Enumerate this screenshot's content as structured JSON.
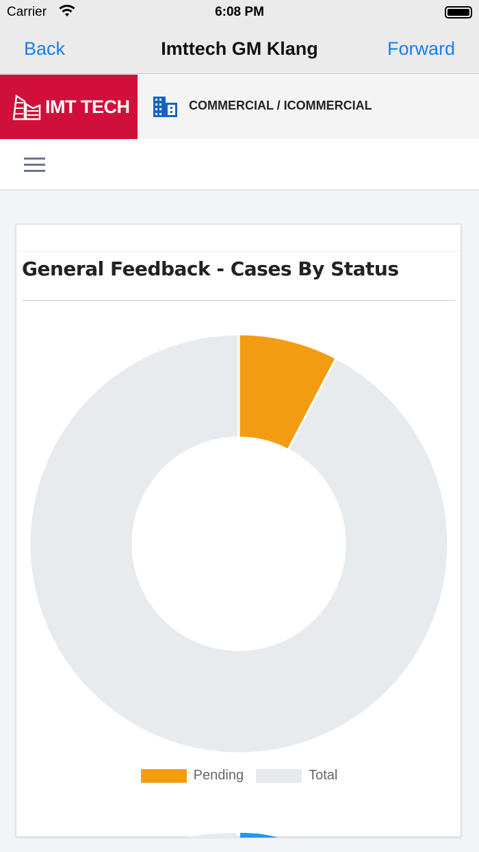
{
  "status": {
    "carrier": "Carrier",
    "time": "6:08 PM"
  },
  "nav": {
    "back": "Back",
    "title": "Imttech GM Klang",
    "forward": "Forward"
  },
  "header": {
    "logo_text": "IMT TECH",
    "breadcrumb": "COMMERCIAL / ICOMMERCIAL",
    "brand_color": "#d0103a"
  },
  "card": {
    "title": "General Feedback - Cases By Status"
  },
  "chart_data": {
    "type": "pie",
    "subtype": "doughnut",
    "title": "General Feedback - Cases By Status",
    "categories": [
      "Pending",
      "Total"
    ],
    "values": [
      1,
      12
    ],
    "colors": [
      "#f39c12",
      "#e8ebee"
    ],
    "legend": "bottom"
  }
}
